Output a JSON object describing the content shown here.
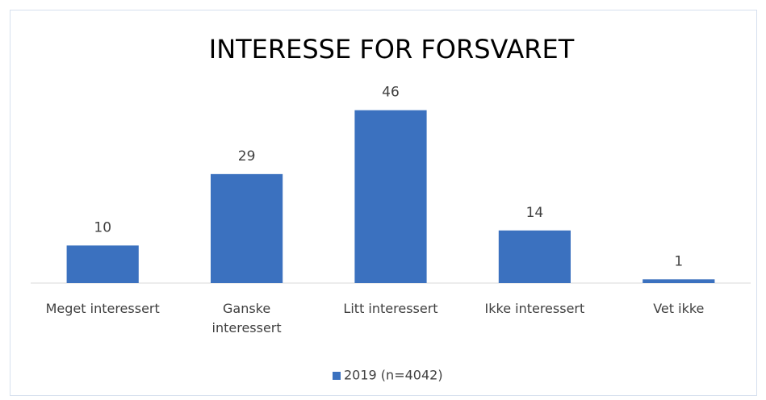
{
  "chart_data": {
    "type": "bar",
    "title": "INTERESSE FOR FORSVARET",
    "categories": [
      "Meget interessert",
      "Ganske interessert",
      "Litt interessert",
      "Ikke interessert",
      "Vet ikke"
    ],
    "series": [
      {
        "name": "2019 (n=4042)",
        "color": "#3b71bf",
        "values": [
          10,
          29,
          46,
          14,
          1
        ]
      }
    ],
    "ylim": [
      0,
      50
    ],
    "legend": "bottom"
  }
}
